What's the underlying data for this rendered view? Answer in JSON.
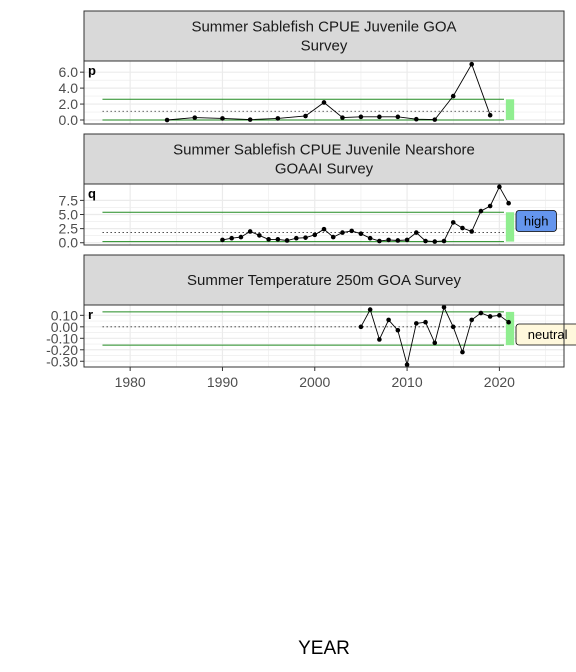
{
  "chart_data": {
    "type": "line",
    "xlabel": "YEAR",
    "xlim": [
      1975,
      2027
    ],
    "x_ticks": [
      1980,
      1990,
      2000,
      2010,
      2020
    ],
    "grid": true,
    "panels": [
      {
        "tag": "p",
        "title_lines": [
          "Summer Sablefish CPUE Juvenile GOA",
          "Survey"
        ],
        "ylim": [
          -0.5,
          7.4
        ],
        "y_ticks": [
          0.0,
          2.0,
          4.0,
          6.0
        ],
        "y_tick_labels": [
          "0.0",
          "2.0",
          "4.0",
          "6.0"
        ],
        "mean": 1.1,
        "upper": 2.6,
        "lower": 0.0,
        "x": [
          1984,
          1987,
          1990,
          1993,
          1996,
          1999,
          2001,
          2003,
          2005,
          2007,
          2009,
          2011,
          2013,
          2015,
          2017,
          2019
        ],
        "y": [
          0.0,
          0.3,
          0.2,
          0.05,
          0.2,
          0.5,
          2.2,
          0.3,
          0.4,
          0.4,
          0.4,
          0.1,
          0.05,
          3.0,
          7.0,
          0.6
        ],
        "status": ""
      },
      {
        "tag": "q",
        "title_lines": [
          "Summer Sablefish CPUE Juvenile Nearshore",
          "GOAAI Survey"
        ],
        "ylim": [
          -0.4,
          10.4
        ],
        "y_ticks": [
          0.0,
          2.5,
          5.0,
          7.5
        ],
        "y_tick_labels": [
          "0.0",
          "2.5",
          "5.0",
          "7.5"
        ],
        "mean": 1.8,
        "upper": 5.4,
        "lower": 0.2,
        "x": [
          1990,
          1991,
          1992,
          1993,
          1994,
          1995,
          1996,
          1997,
          1998,
          1999,
          2000,
          2001,
          2002,
          2003,
          2004,
          2005,
          2006,
          2007,
          2008,
          2009,
          2010,
          2011,
          2012,
          2013,
          2014,
          2015,
          2016,
          2017,
          2018,
          2019,
          2020,
          2021
        ],
        "y": [
          0.5,
          0.8,
          1.0,
          2.0,
          1.3,
          0.6,
          0.6,
          0.4,
          0.8,
          0.9,
          1.4,
          2.4,
          1.0,
          1.8,
          2.1,
          1.6,
          0.8,
          0.3,
          0.5,
          0.4,
          0.5,
          1.8,
          0.3,
          0.2,
          0.3,
          3.6,
          2.6,
          2.0,
          5.6,
          6.5,
          9.9,
          7.0
        ],
        "status": "high",
        "status_color": "#6495ed"
      },
      {
        "tag": "r",
        "title_lines": [
          "Summer Temperature 250m GOA Survey"
        ],
        "ylim": [
          -0.35,
          0.19
        ],
        "y_ticks": [
          -0.3,
          -0.2,
          -0.1,
          0.0,
          0.1
        ],
        "y_tick_labels": [
          "-0.30",
          "-0.20",
          "-0.10",
          "0.00",
          "0.10"
        ],
        "mean": 0.0,
        "upper": 0.13,
        "lower": -0.16,
        "x": [
          2005,
          2006,
          2007,
          2008,
          2009,
          2010,
          2011,
          2012,
          2013,
          2014,
          2015,
          2016,
          2017,
          2018,
          2019,
          2020,
          2021
        ],
        "y": [
          0.0,
          0.15,
          -0.11,
          0.06,
          -0.03,
          -0.33,
          0.03,
          0.04,
          -0.14,
          0.17,
          0.0,
          -0.22,
          0.06,
          0.12,
          0.09,
          0.1,
          0.04
        ],
        "status": "neutral",
        "status_color": "#fff8dc"
      }
    ],
    "colors": {
      "strip_fill": "#d9d9d9",
      "panel_border": "#333333",
      "grid": "#ebebeb",
      "threshold_line": "#228b22",
      "mean_line": "#333333",
      "highlight": "#90ee90",
      "series": "#000000"
    }
  }
}
